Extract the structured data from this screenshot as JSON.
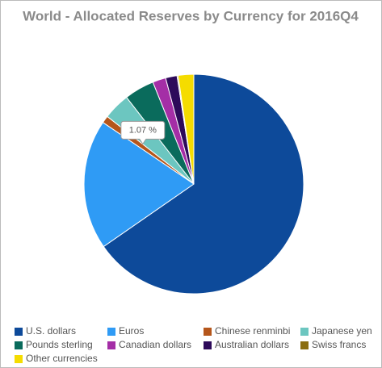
{
  "chart_data": {
    "type": "pie",
    "title": "World - Allocated Reserves by Currency for 2016Q4",
    "categories": [
      "U.S. dollars",
      "Euros",
      "Chinese renminbi",
      "Japanese yen",
      "Pounds sterling",
      "Canadian dollars",
      "Australian dollars",
      "Swiss francs",
      "Other currencies"
    ],
    "values": [
      65.34,
      19.13,
      1.07,
      3.95,
      4.42,
      1.94,
      1.69,
      0.16,
      2.29
    ],
    "value_labels": [
      null,
      null,
      "1.07 %",
      null,
      null,
      null,
      null,
      null,
      null
    ],
    "colors": [
      "#0d4a9a",
      "#2f9bf5",
      "#b5561b",
      "#6cc6c0",
      "#0a6b5c",
      "#a42ea6",
      "#2d0a5a",
      "#8a6d10",
      "#f5dc00"
    ],
    "legend": "bottom"
  }
}
